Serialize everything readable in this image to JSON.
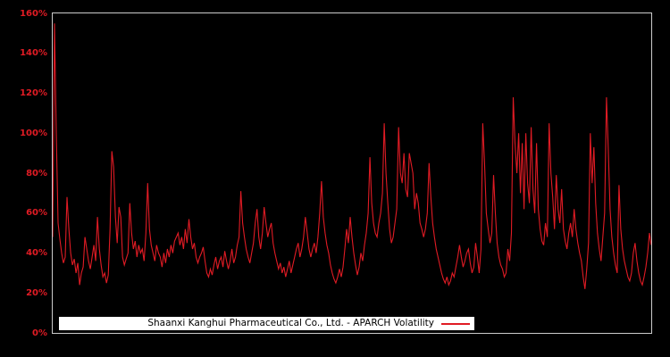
{
  "figure": {
    "background": "#000000",
    "border_color": "#cccccc"
  },
  "legend": {
    "label": "Shaanxi Kanghui Pharmaceutical Co., Ltd. - APARCH Volatility",
    "background": "#ffffff",
    "text_color": "#000000",
    "line_sample_color": "#e01b24"
  },
  "y_axis": {
    "tick_color": "#e01b24"
  },
  "chart_data": {
    "type": "line",
    "title": "",
    "xlabel": "",
    "ylabel": "",
    "x_tick_labels": [],
    "ylim": [
      0,
      160
    ],
    "y_unit": "%",
    "yticks": [
      "0%",
      "20%",
      "40%",
      "60%",
      "80%",
      "100%",
      "120%",
      "140%",
      "160%"
    ],
    "grid": false,
    "legend_position": "inside-bottom-left",
    "series": [
      {
        "name": "Shaanxi Kanghui Pharmaceutical Co., Ltd. - APARCH Volatility",
        "color": "#e01b24",
        "values": [
          48,
          155,
          100,
          55,
          47,
          40,
          35,
          38,
          68,
          52,
          40,
          34,
          37,
          30,
          35,
          24,
          30,
          33,
          48,
          42,
          36,
          32,
          38,
          44,
          36,
          58,
          42,
          34,
          28,
          30,
          25,
          29,
          52,
          91,
          83,
          58,
          45,
          63,
          58,
          38,
          34,
          37,
          40,
          65,
          50,
          42,
          46,
          38,
          44,
          40,
          42,
          36,
          50,
          75,
          52,
          44,
          40,
          36,
          44,
          40,
          38,
          33,
          40,
          35,
          42,
          38,
          44,
          40,
          46,
          48,
          50,
          44,
          48,
          42,
          52,
          45,
          57,
          48,
          42,
          45,
          38,
          35,
          38,
          40,
          43,
          36,
          30,
          28,
          32,
          29,
          34,
          38,
          32,
          36,
          38,
          33,
          41,
          36,
          32,
          36,
          42,
          35,
          38,
          44,
          48,
          71,
          55,
          48,
          42,
          38,
          35,
          40,
          45,
          55,
          62,
          48,
          42,
          50,
          63,
          55,
          48,
          52,
          55,
          45,
          40,
          36,
          32,
          35,
          30,
          33,
          28,
          32,
          36,
          30,
          34,
          38,
          42,
          45,
          38,
          42,
          48,
          58,
          50,
          42,
          38,
          42,
          45,
          40,
          48,
          60,
          76,
          58,
          50,
          44,
          40,
          34,
          30,
          27,
          25,
          28,
          32,
          28,
          33,
          42,
          52,
          45,
          58,
          48,
          40,
          34,
          29,
          33,
          40,
          36,
          44,
          50,
          60,
          88,
          65,
          55,
          50,
          48,
          55,
          60,
          70,
          105,
          80,
          65,
          52,
          45,
          48,
          55,
          62,
          103,
          80,
          75,
          90,
          72,
          68,
          90,
          85,
          80,
          62,
          70,
          65,
          55,
          52,
          48,
          52,
          60,
          85,
          68,
          55,
          48,
          42,
          38,
          34,
          30,
          27,
          25,
          28,
          24,
          26,
          30,
          28,
          33,
          38,
          44,
          38,
          33,
          36,
          40,
          42,
          35,
          30,
          33,
          45,
          38,
          30,
          42,
          105,
          85,
          60,
          52,
          45,
          50,
          79,
          60,
          45,
          38,
          34,
          32,
          28,
          30,
          42,
          36,
          50,
          118,
          95,
          80,
          100,
          70,
          95,
          62,
          100,
          75,
          65,
          103,
          72,
          60,
          95,
          62,
          52,
          46,
          44,
          55,
          48,
          105,
          80,
          68,
          52,
          79,
          62,
          55,
          72,
          52,
          46,
          42,
          50,
          55,
          48,
          62,
          52,
          45,
          40,
          36,
          28,
          22,
          32,
          45,
          100,
          75,
          93,
          65,
          50,
          42,
          36,
          48,
          60,
          118,
          92,
          62,
          48,
          40,
          34,
          30,
          74,
          52,
          42,
          36,
          32,
          28,
          26,
          30,
          40,
          45,
          36,
          30,
          26,
          24,
          28,
          33,
          40,
          50,
          44
        ]
      }
    ]
  }
}
